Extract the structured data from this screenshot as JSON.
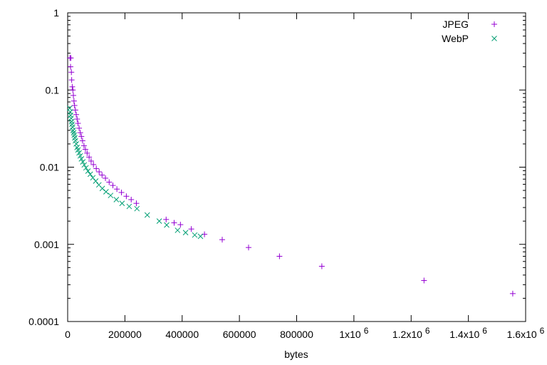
{
  "chart_data": {
    "type": "scatter",
    "title": "",
    "xlabel": "bytes",
    "ylabel": "",
    "xlim": [
      0,
      1600000
    ],
    "ylim": [
      0.0001,
      1
    ],
    "yscale": "log",
    "grid": false,
    "legend_position": "top-right",
    "x_ticks": [
      {
        "value": 0,
        "label": "0"
      },
      {
        "value": 200000,
        "label": "200000"
      },
      {
        "value": 400000,
        "label": "400000"
      },
      {
        "value": 600000,
        "label": "600000"
      },
      {
        "value": 800000,
        "label": "800000"
      },
      {
        "value": 1000000,
        "label": "1x10",
        "sup": "6"
      },
      {
        "value": 1200000,
        "label": "1.2x10",
        "sup": "6"
      },
      {
        "value": 1400000,
        "label": "1.4x10",
        "sup": "6"
      },
      {
        "value": 1600000,
        "label": "1.6x10",
        "sup": "6"
      }
    ],
    "y_ticks": [
      {
        "value": 0.0001,
        "label": "0.0001"
      },
      {
        "value": 0.001,
        "label": "0.001"
      },
      {
        "value": 0.01,
        "label": "0.01"
      },
      {
        "value": 0.1,
        "label": "0.1"
      },
      {
        "value": 1,
        "label": "1"
      }
    ],
    "series": [
      {
        "name": "JPEG",
        "marker": "+",
        "color": "#9400d3",
        "points": [
          [
            8000,
            0.26
          ],
          [
            11000,
            0.26
          ],
          [
            10000,
            0.2
          ],
          [
            13000,
            0.17
          ],
          [
            14000,
            0.135
          ],
          [
            16000,
            0.11
          ],
          [
            18000,
            0.1
          ],
          [
            20000,
            0.085
          ],
          [
            22000,
            0.072
          ],
          [
            24000,
            0.063
          ],
          [
            27000,
            0.055
          ],
          [
            30000,
            0.048
          ],
          [
            33000,
            0.042
          ],
          [
            36000,
            0.037
          ],
          [
            40000,
            0.032
          ],
          [
            44000,
            0.028
          ],
          [
            48000,
            0.025
          ],
          [
            52000,
            0.022
          ],
          [
            57000,
            0.019
          ],
          [
            62000,
            0.017
          ],
          [
            68000,
            0.0152
          ],
          [
            75000,
            0.0135
          ],
          [
            82000,
            0.012
          ],
          [
            90000,
            0.0108
          ],
          [
            100000,
            0.0096
          ],
          [
            110000,
            0.0087
          ],
          [
            120000,
            0.0079
          ],
          [
            132000,
            0.0072
          ],
          [
            145000,
            0.0064
          ],
          [
            158000,
            0.0058
          ],
          [
            172000,
            0.0052
          ],
          [
            188000,
            0.0047
          ],
          [
            205000,
            0.0042
          ],
          [
            222000,
            0.0038
          ],
          [
            240000,
            0.0034
          ],
          [
            344000,
            0.0021
          ],
          [
            372000,
            0.0019
          ],
          [
            394000,
            0.0018
          ],
          [
            432000,
            0.00158
          ],
          [
            478000,
            0.00135
          ],
          [
            540000,
            0.00115
          ],
          [
            632000,
            0.00091
          ],
          [
            740000,
            0.0007
          ],
          [
            888000,
            0.00052
          ],
          [
            1245000,
            0.00034
          ],
          [
            1555000,
            0.00023
          ]
        ]
      },
      {
        "name": "WebP",
        "marker": "x",
        "color": "#009e73",
        "points": [
          [
            7000,
            0.058
          ],
          [
            9000,
            0.052
          ],
          [
            10000,
            0.047
          ],
          [
            12000,
            0.043
          ],
          [
            14000,
            0.039
          ],
          [
            15000,
            0.036
          ],
          [
            17000,
            0.033
          ],
          [
            19000,
            0.03
          ],
          [
            21000,
            0.028
          ],
          [
            23000,
            0.026
          ],
          [
            25000,
            0.024
          ],
          [
            27000,
            0.022
          ],
          [
            30000,
            0.02
          ],
          [
            33000,
            0.018
          ],
          [
            36000,
            0.0167
          ],
          [
            40000,
            0.0153
          ],
          [
            44000,
            0.014
          ],
          [
            48000,
            0.0128
          ],
          [
            53000,
            0.0117
          ],
          [
            58000,
            0.0107
          ],
          [
            64000,
            0.0098
          ],
          [
            71000,
            0.0089
          ],
          [
            79000,
            0.0081
          ],
          [
            88000,
            0.0073
          ],
          [
            98000,
            0.0066
          ],
          [
            109000,
            0.0059
          ],
          [
            121000,
            0.0053
          ],
          [
            134000,
            0.0048
          ],
          [
            150000,
            0.0043
          ],
          [
            170000,
            0.0038
          ],
          [
            190000,
            0.0034
          ],
          [
            215000,
            0.0031
          ],
          [
            242000,
            0.0029
          ],
          [
            278000,
            0.0024
          ],
          [
            320000,
            0.002
          ],
          [
            346000,
            0.00178
          ],
          [
            384000,
            0.00152
          ],
          [
            412000,
            0.00142
          ],
          [
            444000,
            0.00132
          ],
          [
            464000,
            0.00127
          ]
        ]
      }
    ]
  }
}
